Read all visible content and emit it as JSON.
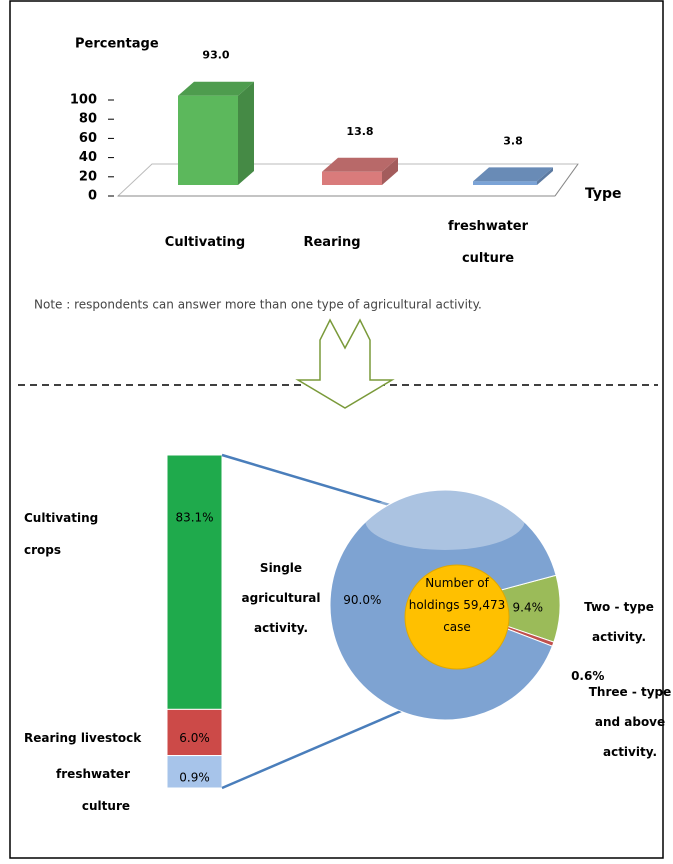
{
  "chart_data": [
    {
      "type": "bar3d",
      "ylabel": "Percentage",
      "xlabel": "Type",
      "categories": [
        "Cultivating",
        "Rearing",
        "freshwater culture"
      ],
      "values": [
        93.0,
        13.8,
        3.8
      ],
      "value_labels": [
        "93.0",
        "13.8",
        "3.8"
      ],
      "colors": [
        "#5cb85c",
        "#d97b7b",
        "#7ba3d6"
      ],
      "ylim": [
        0,
        100
      ],
      "yticks": [
        0,
        20,
        40,
        60,
        80,
        100
      ],
      "note": "Note : respondents can answer  more than one type of agricultural activity."
    },
    {
      "type": "pie_of_bar",
      "pie": {
        "categories": [
          "Single agricultural activity.",
          "Two - type activity.",
          "Three - type and above activity."
        ],
        "values": [
          90.0,
          9.4,
          0.6
        ],
        "value_labels": [
          "90.0%",
          "9.4%",
          "0.6%"
        ],
        "colors": [
          "#7ea3d2",
          "#9bbb59",
          "#c0504d"
        ],
        "center_label": "Number of holdings 59,473 case"
      },
      "bar": {
        "categories": [
          "Cultivating crops",
          "Rearing livestock",
          "freshwater culture"
        ],
        "values": [
          83.1,
          6.0,
          0.9
        ],
        "value_labels": [
          "83.1%",
          "6.0%",
          "0.9%"
        ],
        "colors": [
          "#1faa4c",
          "#cc4a48",
          "#a7c4ea"
        ]
      }
    }
  ]
}
